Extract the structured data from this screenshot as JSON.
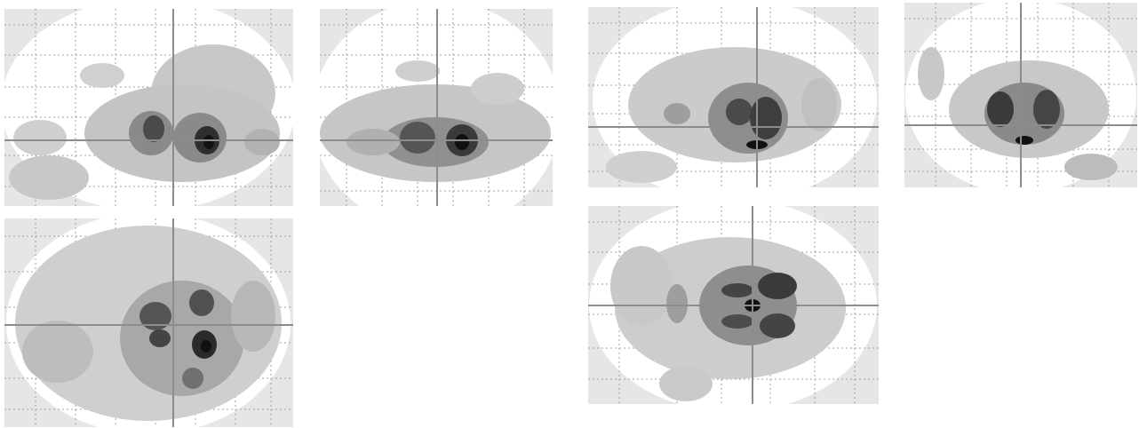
{
  "figure": {
    "panels": [
      {
        "id": "panel-a",
        "view": "glass-brain",
        "crosshair": true
      },
      {
        "id": "panel-b",
        "view": "glass-brain",
        "crosshair": true
      },
      {
        "id": "panel-c",
        "view": "glass-brain",
        "crosshair": true
      },
      {
        "id": "panel-d",
        "view": "glass-brain",
        "crosshair": true
      },
      {
        "id": "panel-e",
        "view": "glass-brain",
        "crosshair": true
      },
      {
        "id": "panel-f",
        "view": "glass-brain",
        "crosshair": true
      }
    ],
    "colors": {
      "background": "#e6e6e6",
      "brain": "#ffffff",
      "grid": "#9a9a9a",
      "crosshair": "#8c8c8c",
      "activation_light": "#d2d2d2",
      "activation_mid": "#a8a8a8",
      "activation_dark": "#5a5a5a",
      "activation_peak": "#1a1a1a"
    }
  }
}
